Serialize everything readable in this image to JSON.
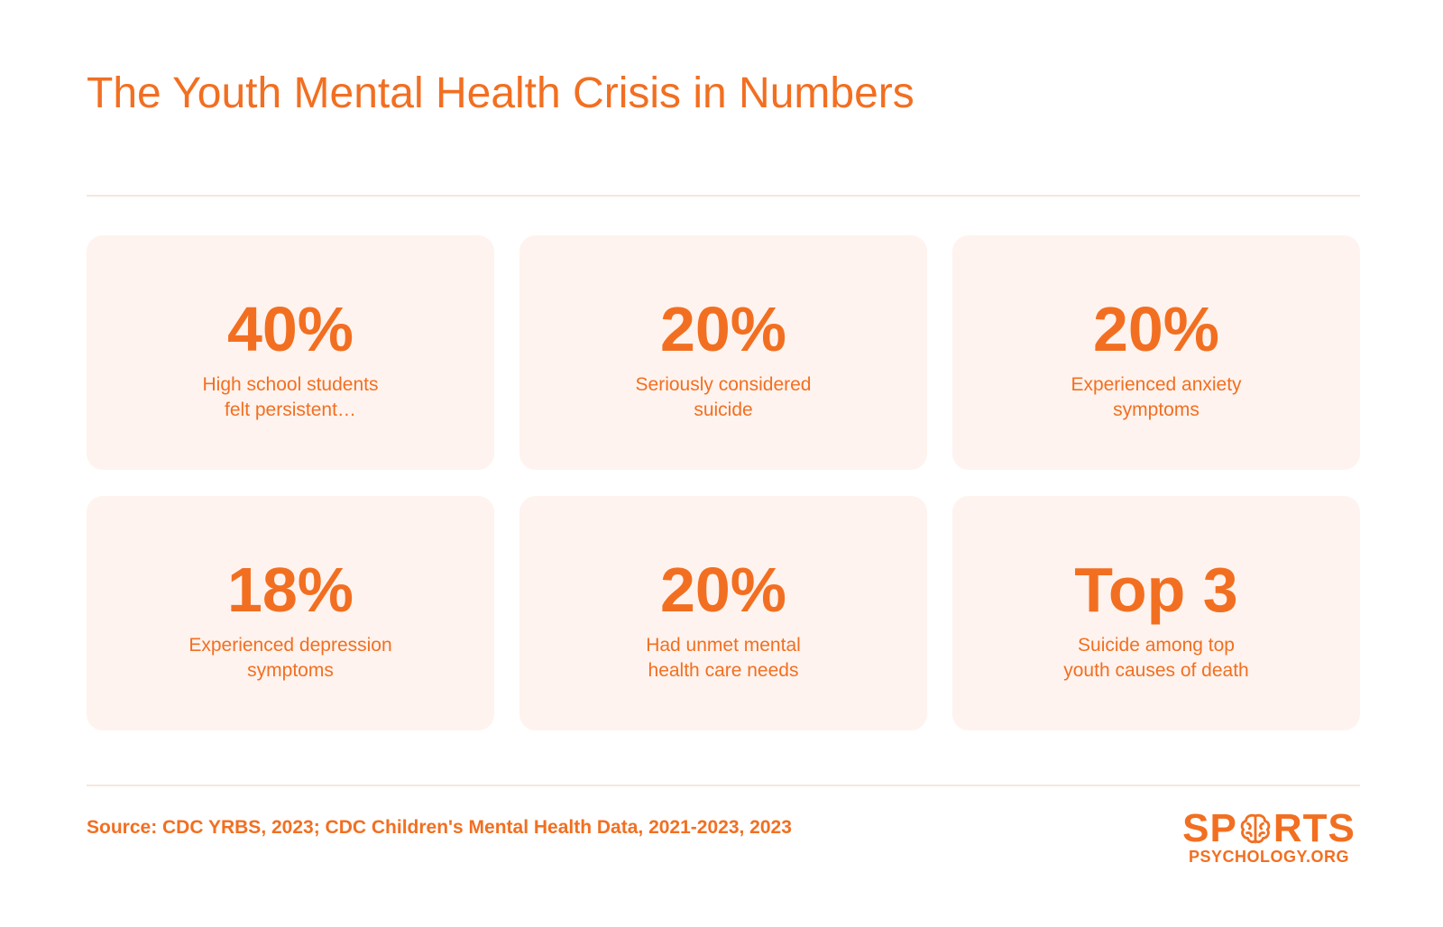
{
  "title": "The Youth Mental Health Crisis in Numbers",
  "stats": [
    {
      "value": "40%",
      "label": "High school students\nfelt persistent…"
    },
    {
      "value": "20%",
      "label": "Seriously considered\nsuicide"
    },
    {
      "value": "20%",
      "label": "Experienced anxiety\nsymptoms"
    },
    {
      "value": "18%",
      "label": "Experienced depression\nsymptoms"
    },
    {
      "value": "20%",
      "label": "Had unmet mental\nhealth care needs"
    },
    {
      "value": "Top 3",
      "label": "Suicide among top\nyouth causes of death"
    }
  ],
  "source": "Source: CDC YRBS, 2023; CDC Children's Mental Health Data, 2021-2023, 2023",
  "logo": {
    "top_left": "SP",
    "top_right": "RTS",
    "bottom": "PSYCHOLOGY.ORG",
    "icon": "brain-icon"
  },
  "colors": {
    "accent": "#f26f21",
    "card_bg": "#fef3ee",
    "divider": "#f7e6dd"
  }
}
